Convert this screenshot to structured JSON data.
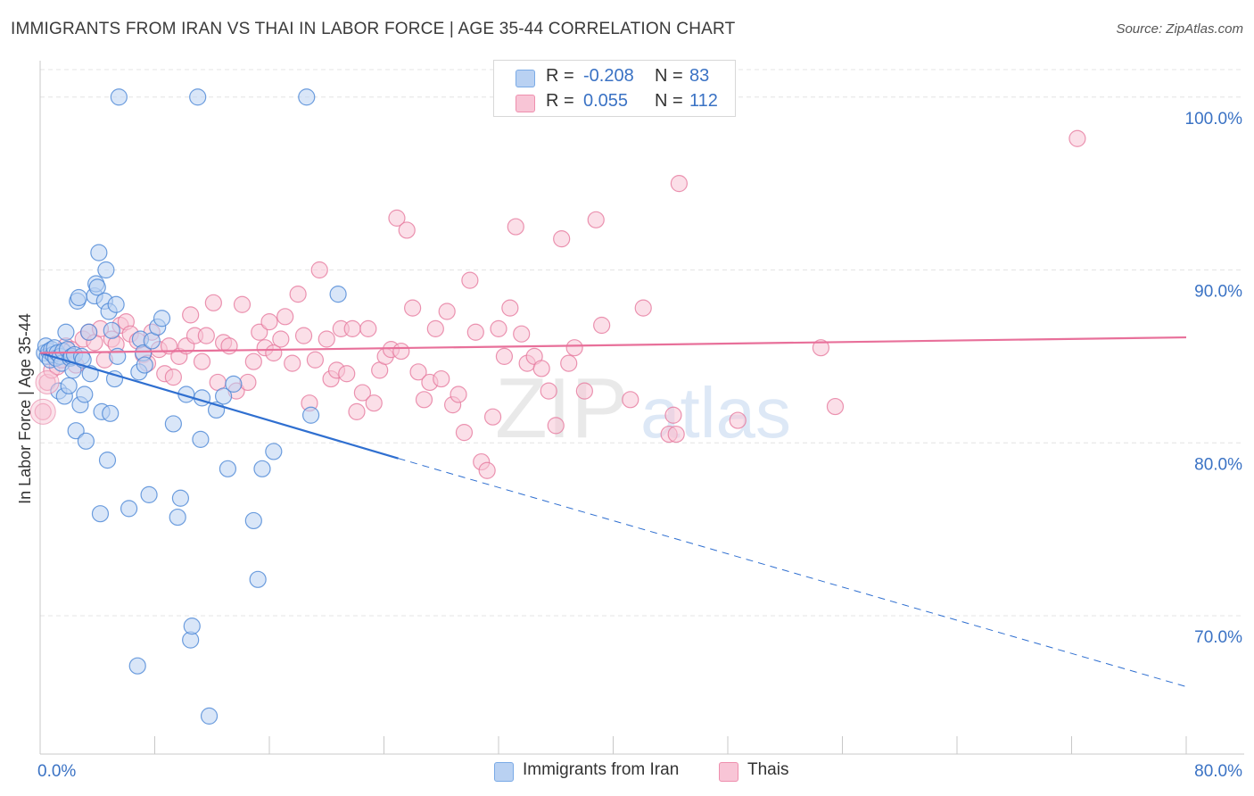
{
  "title": "IMMIGRANTS FROM IRAN VS THAI IN LABOR FORCE | AGE 35-44 CORRELATION CHART",
  "source": "Source: ZipAtlas.com",
  "watermark": {
    "zip": "ZIP",
    "atlas": "atlas"
  },
  "legend": [
    {
      "name": "Immigrants from Iran",
      "r_label": "R =",
      "r_value": "-0.208",
      "n_label": "N =",
      "n_value": "83",
      "color": "#7aaae6",
      "fill": "#b9d1f2"
    },
    {
      "name": "Thais",
      "r_label": "R =",
      "r_value": "0.055",
      "n_label": "N =",
      "n_value": "112",
      "color": "#ee8fae",
      "fill": "#f8c5d6"
    }
  ],
  "chart_data": {
    "type": "scatter",
    "title": "IMMIGRANTS FROM IRAN VS THAI IN LABOR FORCE | AGE 35-44 CORRELATION CHART",
    "xlabel": "",
    "ylabel": "In Labor Force | Age 35-44",
    "xlim": [
      0,
      80
    ],
    "ylim": [
      62,
      102
    ],
    "x_tick_labels": [
      "0.0%",
      "80.0%"
    ],
    "y_ticks": [
      70,
      80,
      90,
      100
    ],
    "y_tick_labels": [
      "70.0%",
      "80.0%",
      "90.0%",
      "100.0%"
    ],
    "grid": true,
    "series": [
      {
        "name": "Immigrants from Iran",
        "color": "#4a86d6",
        "fill": "#b9d1f2",
        "trend": {
          "x0": 0,
          "y0": 85.2,
          "x_solid_end": 25,
          "y_solid_end": 79.1,
          "x1": 80,
          "y1": 65.9,
          "color": "#2f6fd0"
        },
        "points": [
          [
            0.3,
            85.2
          ],
          [
            0.4,
            85.6
          ],
          [
            0.5,
            85.0
          ],
          [
            0.6,
            85.3
          ],
          [
            0.7,
            84.8
          ],
          [
            0.8,
            85.4
          ],
          [
            0.9,
            85.1
          ],
          [
            1.0,
            85.5
          ],
          [
            1.1,
            84.9
          ],
          [
            1.2,
            85.2
          ],
          [
            1.3,
            83.0
          ],
          [
            1.4,
            85.0
          ],
          [
            1.5,
            84.6
          ],
          [
            1.6,
            85.3
          ],
          [
            1.7,
            82.7
          ],
          [
            1.8,
            86.4
          ],
          [
            1.9,
            85.4
          ],
          [
            2.0,
            83.3
          ],
          [
            2.1,
            84.9
          ],
          [
            2.2,
            85.0
          ],
          [
            2.3,
            84.2
          ],
          [
            2.4,
            85.1
          ],
          [
            2.5,
            80.7
          ],
          [
            2.6,
            88.2
          ],
          [
            2.7,
            88.4
          ],
          [
            2.8,
            82.2
          ],
          [
            2.9,
            85.0
          ],
          [
            3.0,
            84.8
          ],
          [
            3.1,
            82.8
          ],
          [
            3.2,
            80.1
          ],
          [
            3.4,
            86.4
          ],
          [
            3.5,
            84.0
          ],
          [
            3.8,
            88.5
          ],
          [
            3.9,
            89.2
          ],
          [
            4.0,
            89.0
          ],
          [
            4.1,
            91.0
          ],
          [
            4.2,
            75.9
          ],
          [
            4.3,
            81.8
          ],
          [
            4.5,
            88.2
          ],
          [
            4.6,
            90.0
          ],
          [
            4.7,
            79.0
          ],
          [
            4.8,
            87.6
          ],
          [
            4.9,
            81.7
          ],
          [
            5.0,
            86.5
          ],
          [
            5.2,
            83.7
          ],
          [
            5.3,
            88.0
          ],
          [
            5.4,
            85.0
          ],
          [
            5.5,
            100.0
          ],
          [
            6.2,
            76.2
          ],
          [
            6.8,
            67.1
          ],
          [
            6.9,
            84.1
          ],
          [
            7.0,
            86.0
          ],
          [
            7.2,
            85.2
          ],
          [
            7.3,
            84.5
          ],
          [
            7.6,
            77.0
          ],
          [
            7.8,
            85.9
          ],
          [
            8.2,
            86.7
          ],
          [
            8.5,
            87.2
          ],
          [
            9.3,
            81.1
          ],
          [
            9.6,
            75.7
          ],
          [
            9.8,
            76.8
          ],
          [
            10.2,
            82.8
          ],
          [
            10.5,
            68.6
          ],
          [
            10.6,
            69.4
          ],
          [
            11.0,
            100.0
          ],
          [
            11.2,
            80.2
          ],
          [
            11.3,
            82.6
          ],
          [
            11.8,
            64.2
          ],
          [
            12.3,
            81.9
          ],
          [
            12.8,
            82.7
          ],
          [
            13.1,
            78.5
          ],
          [
            13.5,
            83.4
          ],
          [
            14.9,
            75.5
          ],
          [
            15.2,
            72.1
          ],
          [
            15.5,
            78.5
          ],
          [
            16.3,
            79.5
          ],
          [
            18.6,
            100.0
          ],
          [
            18.9,
            81.6
          ],
          [
            20.8,
            88.6
          ]
        ]
      },
      {
        "name": "Thais",
        "color": "#e6799e",
        "fill": "#f8c5d6",
        "trend": {
          "x0": 0,
          "y0": 85.2,
          "x1": 80,
          "y1": 86.1,
          "color": "#e8709a"
        },
        "points": [
          [
            0.2,
            81.8
          ],
          [
            0.5,
            83.5
          ],
          [
            0.8,
            84.2
          ],
          [
            1.0,
            85.0
          ],
          [
            1.2,
            84.4
          ],
          [
            1.5,
            84.8
          ],
          [
            1.8,
            85.6
          ],
          [
            2.2,
            85.4
          ],
          [
            2.5,
            84.5
          ],
          [
            3.0,
            86.0
          ],
          [
            3.4,
            86.4
          ],
          [
            3.8,
            85.8
          ],
          [
            4.2,
            86.6
          ],
          [
            4.5,
            84.8
          ],
          [
            5.0,
            86.0
          ],
          [
            5.3,
            85.7
          ],
          [
            5.6,
            86.8
          ],
          [
            6.0,
            87.0
          ],
          [
            6.3,
            86.3
          ],
          [
            6.8,
            85.9
          ],
          [
            7.2,
            85.1
          ],
          [
            7.5,
            84.6
          ],
          [
            7.8,
            86.4
          ],
          [
            8.3,
            85.4
          ],
          [
            8.7,
            84.0
          ],
          [
            9.0,
            85.6
          ],
          [
            9.3,
            83.8
          ],
          [
            9.7,
            85.0
          ],
          [
            10.2,
            85.6
          ],
          [
            10.5,
            87.4
          ],
          [
            10.8,
            86.2
          ],
          [
            11.3,
            84.7
          ],
          [
            11.6,
            86.2
          ],
          [
            12.1,
            88.1
          ],
          [
            12.4,
            83.5
          ],
          [
            12.8,
            85.8
          ],
          [
            13.2,
            85.6
          ],
          [
            13.7,
            83.0
          ],
          [
            14.1,
            88.0
          ],
          [
            14.5,
            83.5
          ],
          [
            14.9,
            84.7
          ],
          [
            15.3,
            86.4
          ],
          [
            15.7,
            85.5
          ],
          [
            16.0,
            87.0
          ],
          [
            16.3,
            85.2
          ],
          [
            16.8,
            86.0
          ],
          [
            17.1,
            87.3
          ],
          [
            17.6,
            84.6
          ],
          [
            18.0,
            88.6
          ],
          [
            18.4,
            86.2
          ],
          [
            18.8,
            82.3
          ],
          [
            19.2,
            84.8
          ],
          [
            19.5,
            90.0
          ],
          [
            20.0,
            86.0
          ],
          [
            20.3,
            83.7
          ],
          [
            20.7,
            84.2
          ],
          [
            21.0,
            86.6
          ],
          [
            21.4,
            84.0
          ],
          [
            21.8,
            86.6
          ],
          [
            22.1,
            81.8
          ],
          [
            22.5,
            82.9
          ],
          [
            22.9,
            86.6
          ],
          [
            23.3,
            82.3
          ],
          [
            23.7,
            84.2
          ],
          [
            24.1,
            85.0
          ],
          [
            24.5,
            85.4
          ],
          [
            24.9,
            93.0
          ],
          [
            25.2,
            85.3
          ],
          [
            25.6,
            92.3
          ],
          [
            26.0,
            87.8
          ],
          [
            26.4,
            84.1
          ],
          [
            26.8,
            82.5
          ],
          [
            27.2,
            83.5
          ],
          [
            27.6,
            86.6
          ],
          [
            28.0,
            83.7
          ],
          [
            28.4,
            87.6
          ],
          [
            28.8,
            82.2
          ],
          [
            29.2,
            82.8
          ],
          [
            29.6,
            80.6
          ],
          [
            30.0,
            89.4
          ],
          [
            30.4,
            86.4
          ],
          [
            30.8,
            78.9
          ],
          [
            31.2,
            78.4
          ],
          [
            31.6,
            81.5
          ],
          [
            32.0,
            86.6
          ],
          [
            32.4,
            85.0
          ],
          [
            32.8,
            87.8
          ],
          [
            33.2,
            92.5
          ],
          [
            33.6,
            86.3
          ],
          [
            34.0,
            84.6
          ],
          [
            34.5,
            85.0
          ],
          [
            35.0,
            84.3
          ],
          [
            35.5,
            83.0
          ],
          [
            36.0,
            81.0
          ],
          [
            36.4,
            91.8
          ],
          [
            36.9,
            84.6
          ],
          [
            37.3,
            85.5
          ],
          [
            38.0,
            83.0
          ],
          [
            38.8,
            92.9
          ],
          [
            39.2,
            86.8
          ],
          [
            41.2,
            82.5
          ],
          [
            42.1,
            87.8
          ],
          [
            43.9,
            80.5
          ],
          [
            44.2,
            81.6
          ],
          [
            44.4,
            80.5
          ],
          [
            44.6,
            95.0
          ],
          [
            48.7,
            81.3
          ],
          [
            54.5,
            85.5
          ],
          [
            55.5,
            82.1
          ],
          [
            72.4,
            97.6
          ]
        ]
      }
    ]
  }
}
